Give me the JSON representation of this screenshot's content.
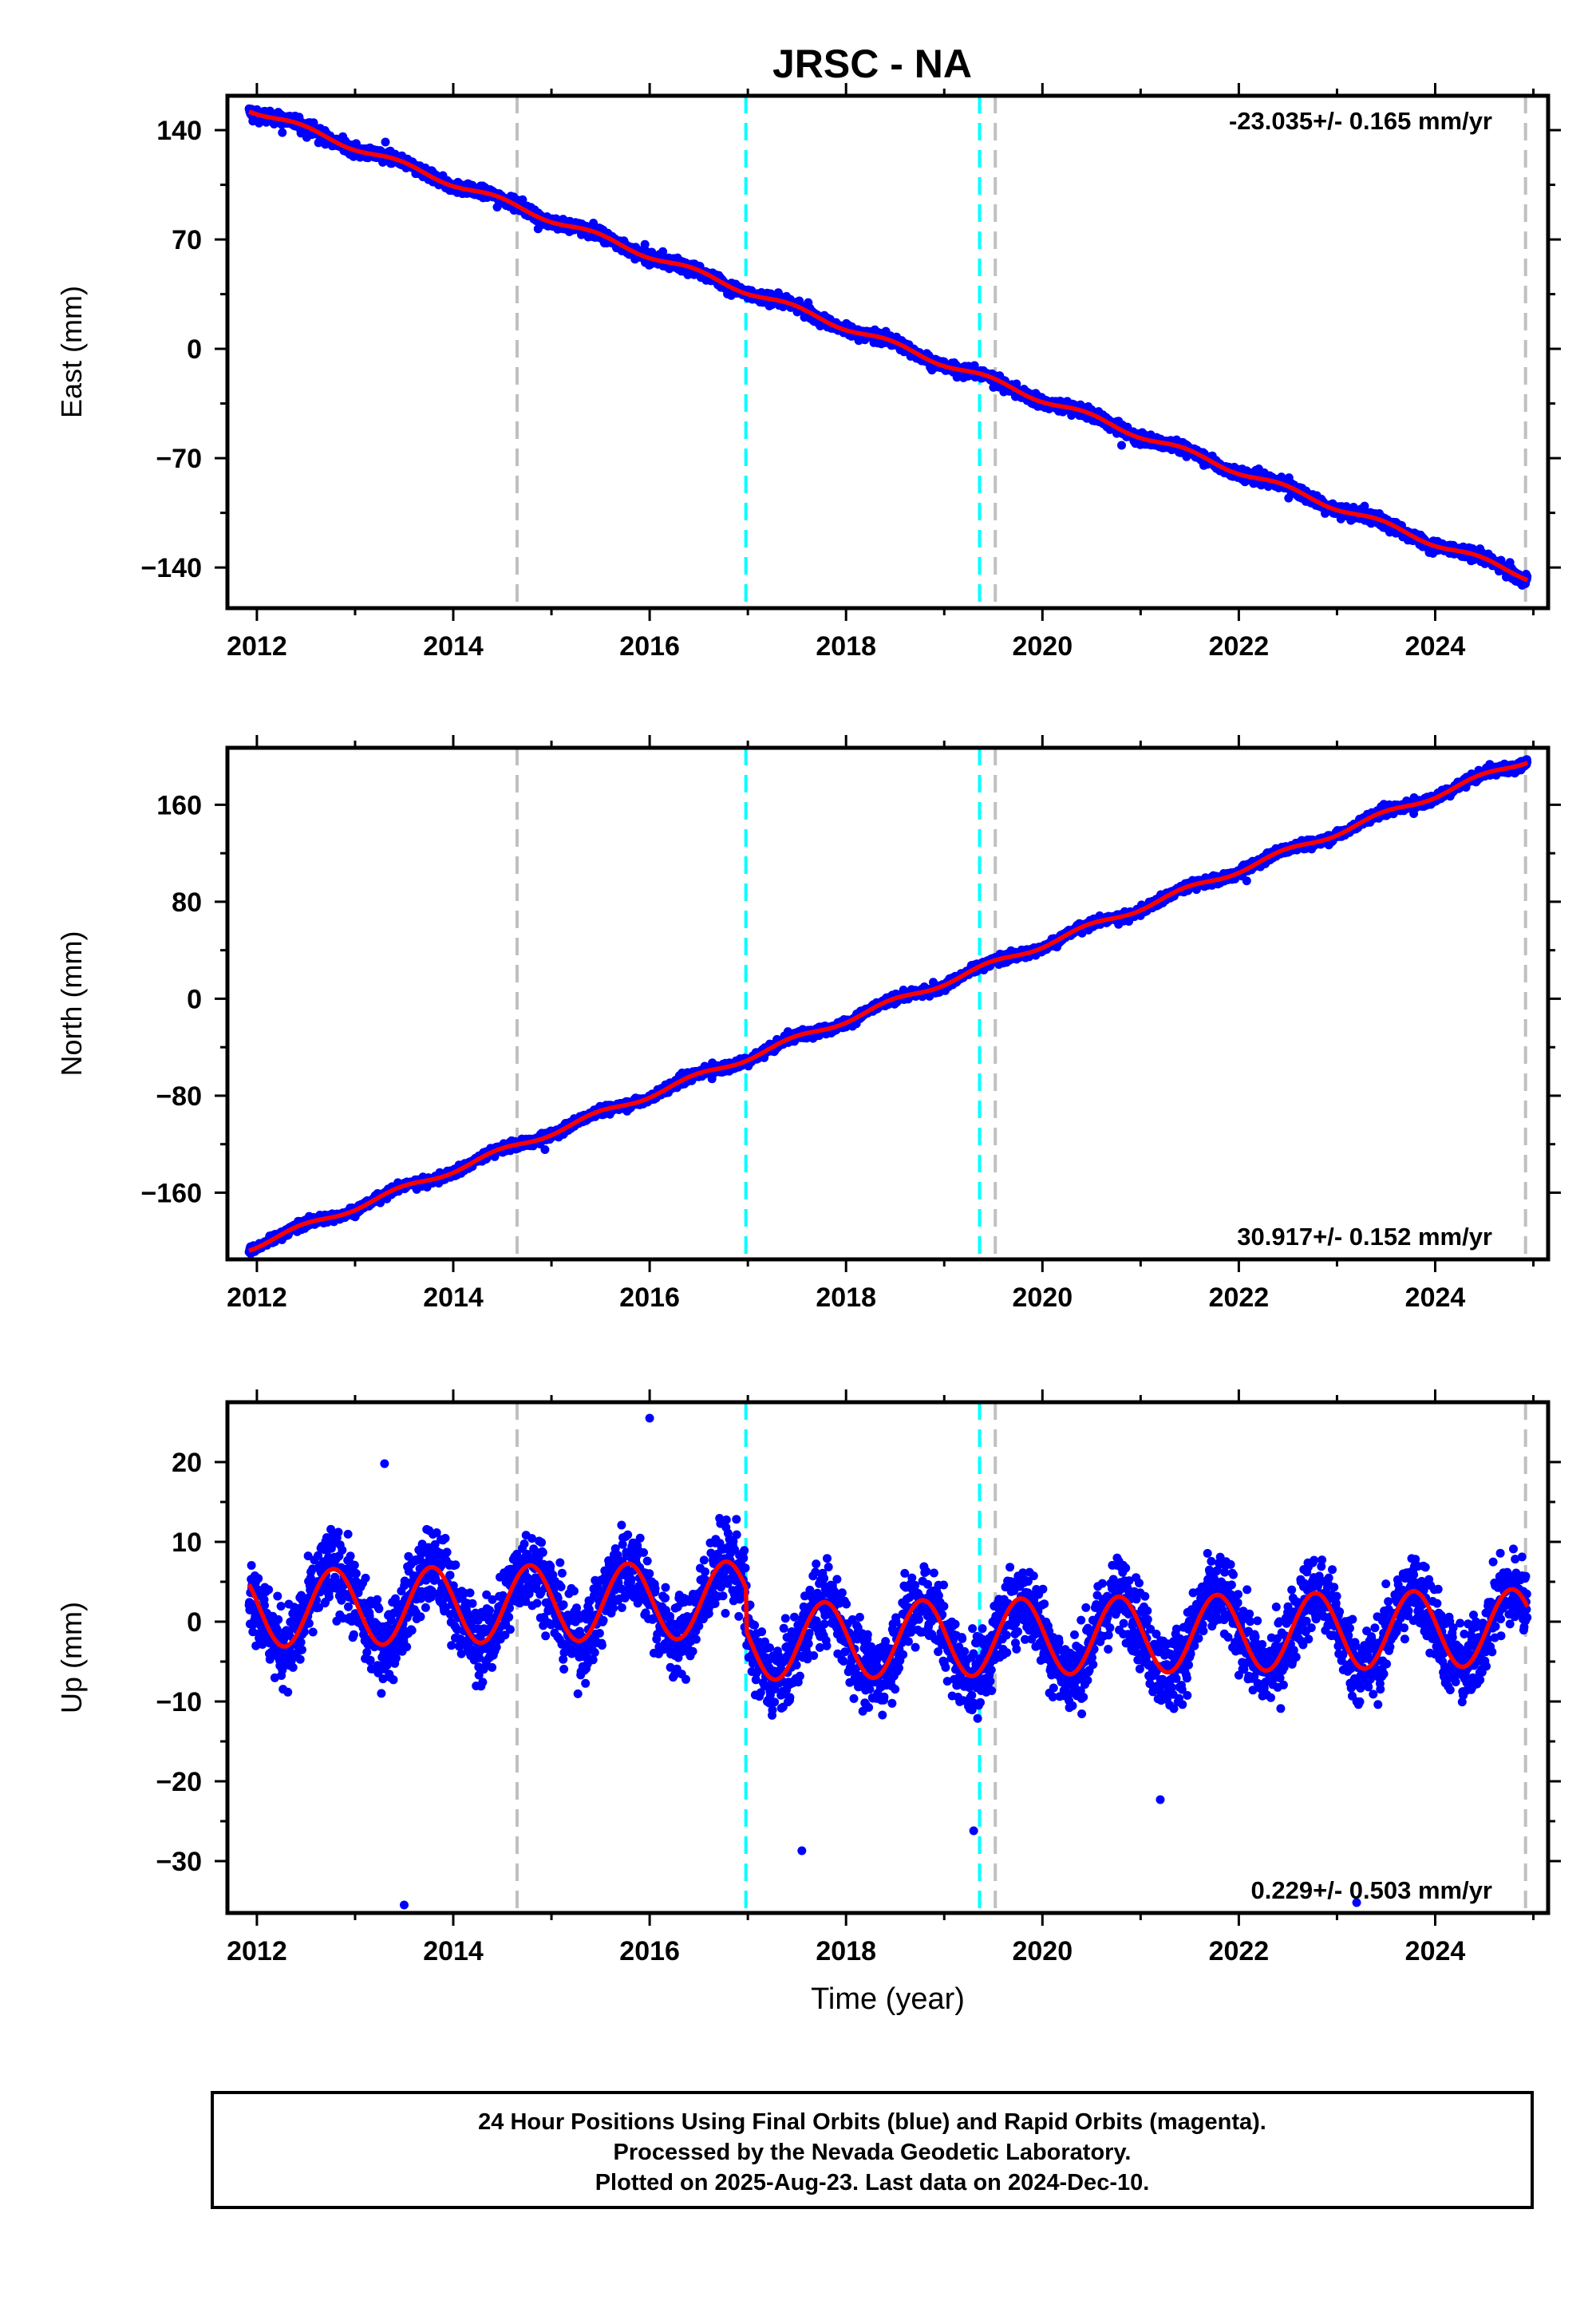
{
  "title": "JRSC - NA",
  "colors": {
    "points": "#0000ff",
    "fit": "#ff0000",
    "marker_gray": "#c0c0c0",
    "marker_cyan": "#00ffff",
    "frame": "#000000"
  },
  "chart_data": [
    {
      "type": "scatter",
      "panel": "east",
      "ylabel": "East (mm)",
      "xlim": [
        2011.7,
        2025.15
      ],
      "ylim": [
        -166,
        162
      ],
      "xticks": [
        2012,
        2014,
        2016,
        2018,
        2020,
        2022,
        2024
      ],
      "xtick_labels": [
        "2012",
        "2014",
        "2016",
        "2018",
        "2020",
        "2022",
        "2024"
      ],
      "yticks": [
        140,
        70,
        0,
        -70,
        -140
      ],
      "ytick_labels": [
        "140",
        "70",
        "0",
        "−70",
        "−140"
      ],
      "annotation": "-23.035+/- 0.165 mm/yr",
      "annotation_position": "top-right",
      "rate_mm_per_yr": -23.035,
      "value_at_2012": 152,
      "seasonal_amplitude": 2,
      "noise": 2.5,
      "series": [
        {
          "role": "daily positions",
          "style": "blue dots"
        },
        {
          "role": "model fit",
          "style": "red line"
        }
      ],
      "sample_points": {
        "x": [
          2011.9,
          2014,
          2016,
          2018,
          2020,
          2022,
          2024,
          2024.9
        ],
        "y": [
          152,
          103,
          56,
          12,
          -28,
          -73,
          -120,
          -142
        ]
      },
      "vertical_markers": [
        {
          "x": 2014.65,
          "color": "gray"
        },
        {
          "x": 2016.98,
          "color": "cyan"
        },
        {
          "x": 2019.36,
          "color": "cyan"
        },
        {
          "x": 2019.52,
          "color": "gray"
        },
        {
          "x": 2024.92,
          "color": "gray"
        }
      ]
    },
    {
      "type": "scatter",
      "panel": "north",
      "ylabel": "North (mm)",
      "xlim": [
        2011.7,
        2025.15
      ],
      "ylim": [
        -215,
        207
      ],
      "xticks": [
        2012,
        2014,
        2016,
        2018,
        2020,
        2022,
        2024
      ],
      "xtick_labels": [
        "2012",
        "2014",
        "2016",
        "2018",
        "2020",
        "2022",
        "2024"
      ],
      "yticks": [
        160,
        80,
        0,
        -80,
        -160
      ],
      "ytick_labels": [
        "160",
        "80",
        "0",
        "−80",
        "−160"
      ],
      "annotation": "30.917+/- 0.152 mm/yr",
      "annotation_position": "bottom-right",
      "rate_mm_per_yr": 30.917,
      "value_at_2012": -203,
      "seasonal_amplitude": 2.5,
      "noise": 2.5,
      "series": [
        {
          "role": "daily positions",
          "style": "blue dots"
        },
        {
          "role": "model fit",
          "style": "red line"
        }
      ],
      "sample_points": {
        "x": [
          2011.9,
          2014,
          2016,
          2018,
          2020,
          2022,
          2024,
          2024.9
        ],
        "y": [
          -206,
          -143,
          -83,
          -22,
          35,
          100,
          162,
          195
        ]
      },
      "vertical_markers": [
        {
          "x": 2014.65,
          "color": "gray"
        },
        {
          "x": 2016.98,
          "color": "cyan"
        },
        {
          "x": 2019.36,
          "color": "cyan"
        },
        {
          "x": 2019.52,
          "color": "gray"
        },
        {
          "x": 2024.92,
          "color": "gray"
        }
      ]
    },
    {
      "type": "scatter",
      "panel": "up",
      "ylabel": "Up (mm)",
      "xlabel": "Time (year)",
      "xlim": [
        2011.7,
        2025.15
      ],
      "ylim": [
        -36.5,
        27.5
      ],
      "xticks": [
        2012,
        2014,
        2016,
        2018,
        2020,
        2022,
        2024
      ],
      "xtick_labels": [
        "2012",
        "2014",
        "2016",
        "2018",
        "2020",
        "2022",
        "2024"
      ],
      "yticks": [
        20,
        10,
        0,
        -10,
        -20,
        -30
      ],
      "ytick_labels": [
        "20",
        "10",
        "0",
        "−10",
        "−20",
        "−30"
      ],
      "annotation": "0.229+/- 0.503 mm/yr",
      "annotation_position": "bottom-right",
      "rate_mm_per_yr": 0.229,
      "seasonal_amplitude": 4.8,
      "seasonal_peak_phase": 0.78,
      "offset_before_2016_98": 3.0,
      "offset_after_2016_98": -2.3,
      "noise": 3.5,
      "series": [
        {
          "role": "daily positions",
          "style": "blue dots"
        },
        {
          "role": "model fit",
          "style": "red line"
        }
      ],
      "outliers": {
        "x": [
          2013.5,
          2016.0,
          2013.3,
          2017.55,
          2019.3,
          2021.2,
          2023.2
        ],
        "y": [
          -35.5,
          25.5,
          19.8,
          -28.7,
          -26.2,
          -22.3,
          -35.2
        ]
      },
      "vertical_markers": [
        {
          "x": 2014.65,
          "color": "gray"
        },
        {
          "x": 2016.98,
          "color": "cyan"
        },
        {
          "x": 2019.36,
          "color": "cyan"
        },
        {
          "x": 2019.52,
          "color": "gray"
        },
        {
          "x": 2024.92,
          "color": "gray"
        }
      ]
    }
  ],
  "footer": {
    "line1": "24 Hour Positions Using Final Orbits (blue) and Rapid Orbits (magenta).",
    "line2": "Processed by the Nevada Geodetic Laboratory.",
    "line3": "Plotted on 2025-Aug-23. Last data on 2024-Dec-10."
  }
}
